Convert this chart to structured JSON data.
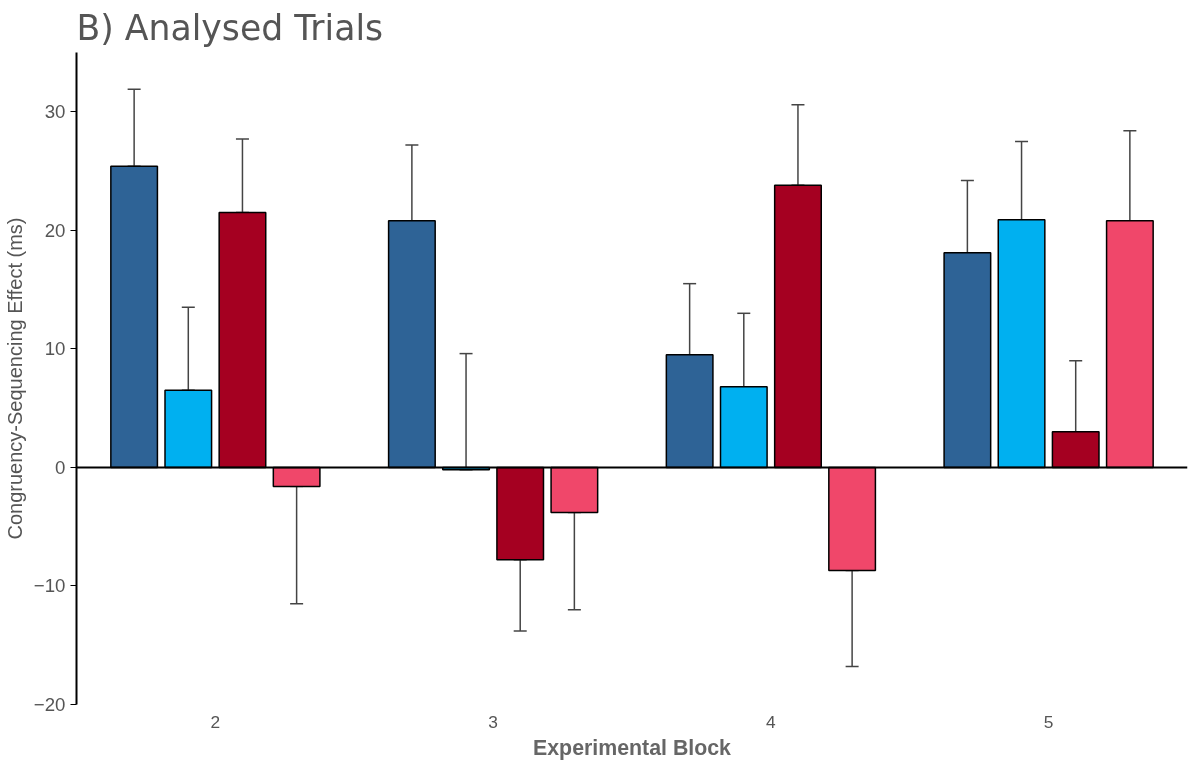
{
  "chart_data": {
    "type": "bar",
    "title": "B) Analysed Trials",
    "xlabel": "Experimental Block",
    "ylabel": "Congruency-Sequencing Effect (ms)",
    "categories": [
      "2",
      "3",
      "4",
      "5"
    ],
    "series": [
      {
        "color": "#2e6396",
        "values": [
          25.4,
          20.8,
          9.5,
          18.1
        ],
        "errors": [
          [
            25.4,
            31.9
          ],
          [
            20.8,
            27.2
          ],
          [
            9.5,
            15.5
          ],
          [
            18.1,
            24.2
          ]
        ]
      },
      {
        "color": "#00b0f0",
        "values": [
          6.5,
          -0.2,
          6.8,
          20.9
        ],
        "errors": [
          [
            6.5,
            13.5
          ],
          [
            -0.2,
            9.6
          ],
          [
            6.8,
            13.0
          ],
          [
            20.9,
            27.5
          ]
        ]
      },
      {
        "color": "#a50021",
        "values": [
          21.5,
          -7.8,
          23.8,
          3.0
        ],
        "errors": [
          [
            21.5,
            27.7
          ],
          [
            -13.8,
            -7.8
          ],
          [
            23.8,
            30.6
          ],
          [
            3.0,
            9.0
          ]
        ]
      },
      {
        "color": "#f0476a",
        "values": [
          -1.6,
          -3.8,
          -8.7,
          20.8
        ],
        "errors": [
          [
            -11.5,
            -1.6
          ],
          [
            -12.0,
            -3.8
          ],
          [
            -16.8,
            -8.7
          ],
          [
            20.8,
            28.4
          ]
        ]
      }
    ],
    "ylim": [
      -20,
      35
    ],
    "yticks": [
      -20,
      -10,
      0,
      10,
      20,
      30
    ]
  }
}
